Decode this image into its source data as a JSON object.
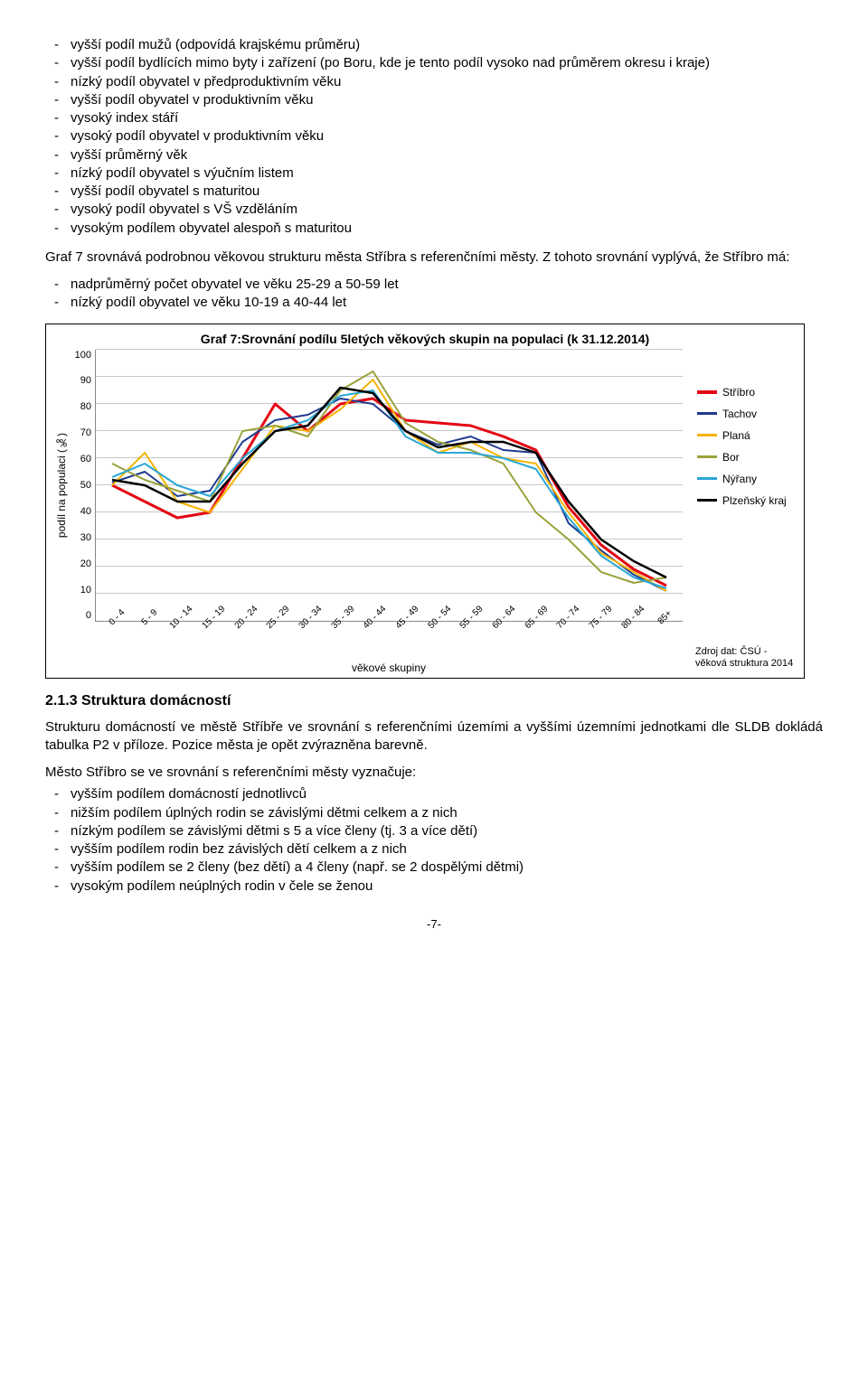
{
  "list1": [
    "vyšší podíl mužů (odpovídá krajskému průměru)",
    "vyšší podíl bydlících mimo byty i zařízení (po Boru, kde je tento podíl vysoko nad průměrem okresu i kraje)",
    "nízký podíl obyvatel v předproduktivním věku",
    "vyšší podíl obyvatel v produktivním věku",
    "vysoký index stáří",
    "vysoký podíl obyvatel v produktivním věku",
    "vyšší průměrný věk",
    "nízký podíl obyvatel s výučním listem",
    "vyšší podíl obyvatel s maturitou",
    "vysoký podíl obyvatel s VŠ vzděláním",
    "vysokým podílem obyvatel alespoň s maturitou"
  ],
  "para1": "Graf 7 srovnává podrobnou věkovou strukturu města Stříbra s referenčními městy. Z tohoto srovnání vyplývá, že Stříbro má:",
  "list2": [
    "nadprůměrný počet obyvatel ve věku 25-29 a 50-59 let",
    "nízký podíl obyvatel ve věku 10-19  a 40-44 let"
  ],
  "chart": {
    "title": "Graf 7:Srovnání podílu 5letých věkových skupin na populaci (k 31.12.2014)",
    "ylabel": "podíl na populaci (‰)",
    "xlabel": "věkové skupiny",
    "ymax": 100,
    "ytick_step": 10,
    "yticks": [
      "100",
      "90",
      "80",
      "70",
      "60",
      "50",
      "40",
      "30",
      "20",
      "10",
      "0"
    ],
    "categories": [
      "0 - 4",
      "5 - 9",
      "10 - 14",
      "15 - 19",
      "20 - 24",
      "25 - 29",
      "30 - 34",
      "35 - 39",
      "40 - 44",
      "45 - 49",
      "50 - 54",
      "55 - 59",
      "60 - 64",
      "65 - 69",
      "70 - 74",
      "75 - 79",
      "80 - 84",
      "85+"
    ],
    "series": [
      {
        "name": "Stříbro",
        "color": "#e30613",
        "width": 3,
        "values": [
          50,
          44,
          38,
          40,
          60,
          80,
          70,
          80,
          82,
          74,
          73,
          72,
          68,
          63,
          42,
          28,
          19,
          13
        ]
      },
      {
        "name": "Tachov",
        "color": "#1f3b8f",
        "width": 2,
        "values": [
          51,
          55,
          46,
          48,
          66,
          74,
          76,
          82,
          80,
          70,
          65,
          68,
          63,
          62,
          36,
          26,
          17,
          11
        ]
      },
      {
        "name": "Planá",
        "color": "#f5b400",
        "width": 2,
        "values": [
          50,
          62,
          44,
          40,
          56,
          72,
          70,
          78,
          89,
          70,
          62,
          66,
          60,
          58,
          40,
          25,
          18,
          11
        ]
      },
      {
        "name": "Bor",
        "color": "#9aa23a",
        "width": 2,
        "values": [
          58,
          52,
          48,
          44,
          70,
          72,
          68,
          85,
          92,
          73,
          66,
          63,
          58,
          40,
          30,
          18,
          14,
          16
        ]
      },
      {
        "name": "Nýřany",
        "color": "#2aa7d6",
        "width": 2,
        "values": [
          53,
          58,
          50,
          46,
          60,
          70,
          74,
          83,
          85,
          68,
          62,
          62,
          60,
          56,
          38,
          24,
          16,
          12
        ]
      },
      {
        "name": "Plzeňský kraj",
        "color": "#000000",
        "width": 2.5,
        "values": [
          52,
          50,
          44,
          44,
          58,
          70,
          72,
          86,
          84,
          70,
          64,
          66,
          66,
          62,
          44,
          30,
          22,
          16
        ]
      }
    ],
    "grid_color": "#c8c8c8",
    "background": "#ffffff",
    "source": "Zdroj dat: ČSÚ - věková struktura 2014"
  },
  "section": "2.1.3   Struktura domácností",
  "para2": "Strukturu domácností ve městě Stříbře ve srovnání s referenčními územími a vyššími územními jednotkami dle SLDB dokládá tabulka P2 v příloze. Pozice města je opět zvýrazněna barevně.",
  "para3": "Město Stříbro se ve srovnání s referenčními městy vyznačuje:",
  "list3": [
    "vyšším podílem domácností jednotlivců",
    "nižším podílem úplných rodin se závislými dětmi celkem a z nich",
    "nízkým podílem se závislými dětmi s 5 a více členy (tj. 3 a více dětí)",
    "vyšším podílem rodin bez závislých dětí celkem a z nich",
    "vyšším podílem se 2 členy (bez dětí) a 4 členy (např. se 2 dospělými dětmi)",
    "vysokým podílem neúplných rodin v čele se ženou"
  ],
  "pagenum": "-7-"
}
